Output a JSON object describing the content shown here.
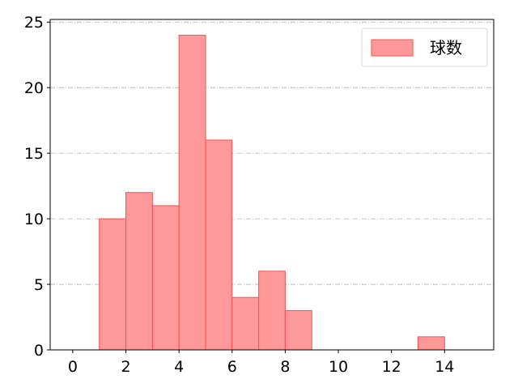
{
  "chart_data": {
    "type": "bar",
    "subtype": "histogram",
    "bins": [
      [
        1,
        2
      ],
      [
        2,
        3
      ],
      [
        3,
        4
      ],
      [
        4,
        5
      ],
      [
        5,
        6
      ],
      [
        6,
        7
      ],
      [
        7,
        8
      ],
      [
        8,
        9
      ],
      [
        13,
        14
      ]
    ],
    "values": [
      10,
      12,
      11,
      24,
      16,
      4,
      6,
      3,
      1
    ],
    "series": [
      {
        "name": "球数",
        "values": [
          10,
          12,
          11,
          24,
          16,
          4,
          6,
          3,
          1
        ]
      }
    ],
    "xlim": [
      -0.85,
      15.85
    ],
    "ylim": [
      0,
      25.2
    ],
    "xticks": [
      0,
      2,
      4,
      6,
      8,
      10,
      12,
      14
    ],
    "yticks": [
      0,
      5,
      10,
      15,
      20,
      25
    ],
    "xlabel": "",
    "ylabel": "",
    "title": "",
    "grid": "horizontal dash-dot",
    "legend": "top-right",
    "colors": {
      "bar_fill": "#ff9999",
      "bar_edge": "#ff4d4d",
      "grid": "#b0b0b0"
    }
  }
}
